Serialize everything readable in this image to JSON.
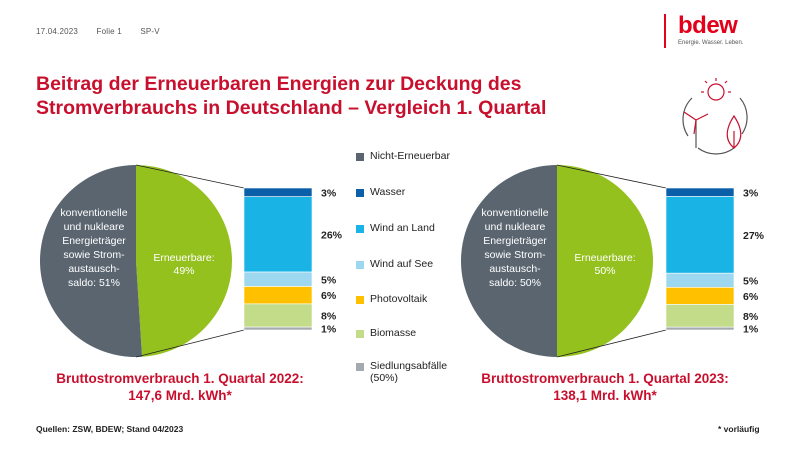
{
  "header": {
    "date": "17.04.2023",
    "slide": "Folie 1",
    "code": "SP-V"
  },
  "logo": {
    "word": "bdew",
    "tagline": "Energie. Wasser. Leben."
  },
  "title": "Beitrag der Erneuerbaren Energien zur Deckung des Stromverbrauchs in Deutschland – Vergleich 1. Quartal",
  "legend": [
    {
      "label": "Nicht-Erneuerbar",
      "color": "#5a6570"
    },
    {
      "label": "Wasser",
      "color": "#0b5ea8"
    },
    {
      "label": "Wind an Land",
      "color": "#19b3e6"
    },
    {
      "label": "Wind auf See",
      "color": "#9ed8f0"
    },
    {
      "label": "Photovoltaik",
      "color": "#ffc000"
    },
    {
      "label": "Biomasse",
      "color": "#c2dc8a"
    },
    {
      "label": "Siedlungsabfälle",
      "label2": "(50%)",
      "color": "#a4aaae"
    }
  ],
  "chart_data": [
    {
      "type": "pie",
      "year": "2022",
      "slices": [
        {
          "name": "konventionelle und nukleare Energieträger sowie Stromaustauschsaldo",
          "label_lines": [
            "konventionelle",
            "und nukleare",
            "Energieträger",
            "sowie Strom-",
            "austausch-",
            "saldo: 51%"
          ],
          "value": 51,
          "color": "#5a6570"
        },
        {
          "name": "Erneuerbare",
          "label_lines": [
            "Erneuerbare:",
            "49%"
          ],
          "value": 49,
          "color": "#95c11f"
        }
      ],
      "breakdown": [
        {
          "name": "Wasser",
          "value": 3,
          "label": "3%",
          "color": "#0b5ea8"
        },
        {
          "name": "Wind an Land",
          "value": 26,
          "label": "26%",
          "color": "#19b3e6"
        },
        {
          "name": "Wind auf See",
          "value": 5,
          "label": "5%",
          "color": "#9ed8f0"
        },
        {
          "name": "Photovoltaik",
          "value": 6,
          "label": "6%",
          "color": "#ffc000"
        },
        {
          "name": "Biomasse",
          "value": 8,
          "label": "8%",
          "color": "#c2dc8a"
        },
        {
          "name": "Siedlungsabfälle (50%)",
          "value": 1,
          "label": "1%",
          "color": "#a4aaae"
        }
      ],
      "caption_lines": [
        "Bruttostromverbrauch 1. Quartal 2022:",
        "147,6 Mrd. kWh*"
      ]
    },
    {
      "type": "pie",
      "year": "2023",
      "slices": [
        {
          "name": "konventionelle und nukleare Energieträger sowie Stromaustauschsaldo",
          "label_lines": [
            "konventionelle",
            "und nukleare",
            "Energieträger",
            "sowie Strom-",
            "austausch-",
            "saldo: 50%"
          ],
          "value": 50,
          "color": "#5a6570"
        },
        {
          "name": "Erneuerbare",
          "label_lines": [
            "Erneuerbare:",
            "50%"
          ],
          "value": 50,
          "color": "#95c11f"
        }
      ],
      "breakdown": [
        {
          "name": "Wasser",
          "value": 3,
          "label": "3%",
          "color": "#0b5ea8"
        },
        {
          "name": "Wind an Land",
          "value": 27,
          "label": "27%",
          "color": "#19b3e6"
        },
        {
          "name": "Wind auf See",
          "value": 5,
          "label": "5%",
          "color": "#9ed8f0"
        },
        {
          "name": "Photovoltaik",
          "value": 6,
          "label": "6%",
          "color": "#ffc000"
        },
        {
          "name": "Biomasse",
          "value": 8,
          "label": "8%",
          "color": "#c2dc8a"
        },
        {
          "name": "Siedlungsabfälle (50%)",
          "value": 1,
          "label": "1%",
          "color": "#a4aaae"
        }
      ],
      "caption_lines": [
        "Bruttostromverbrauch 1. Quartal 2023:",
        "138,1 Mrd. kWh*"
      ]
    }
  ],
  "footer": {
    "sources": "Quellen: ZSW, BDEW; Stand 04/2023",
    "note": "* vorläufig"
  }
}
